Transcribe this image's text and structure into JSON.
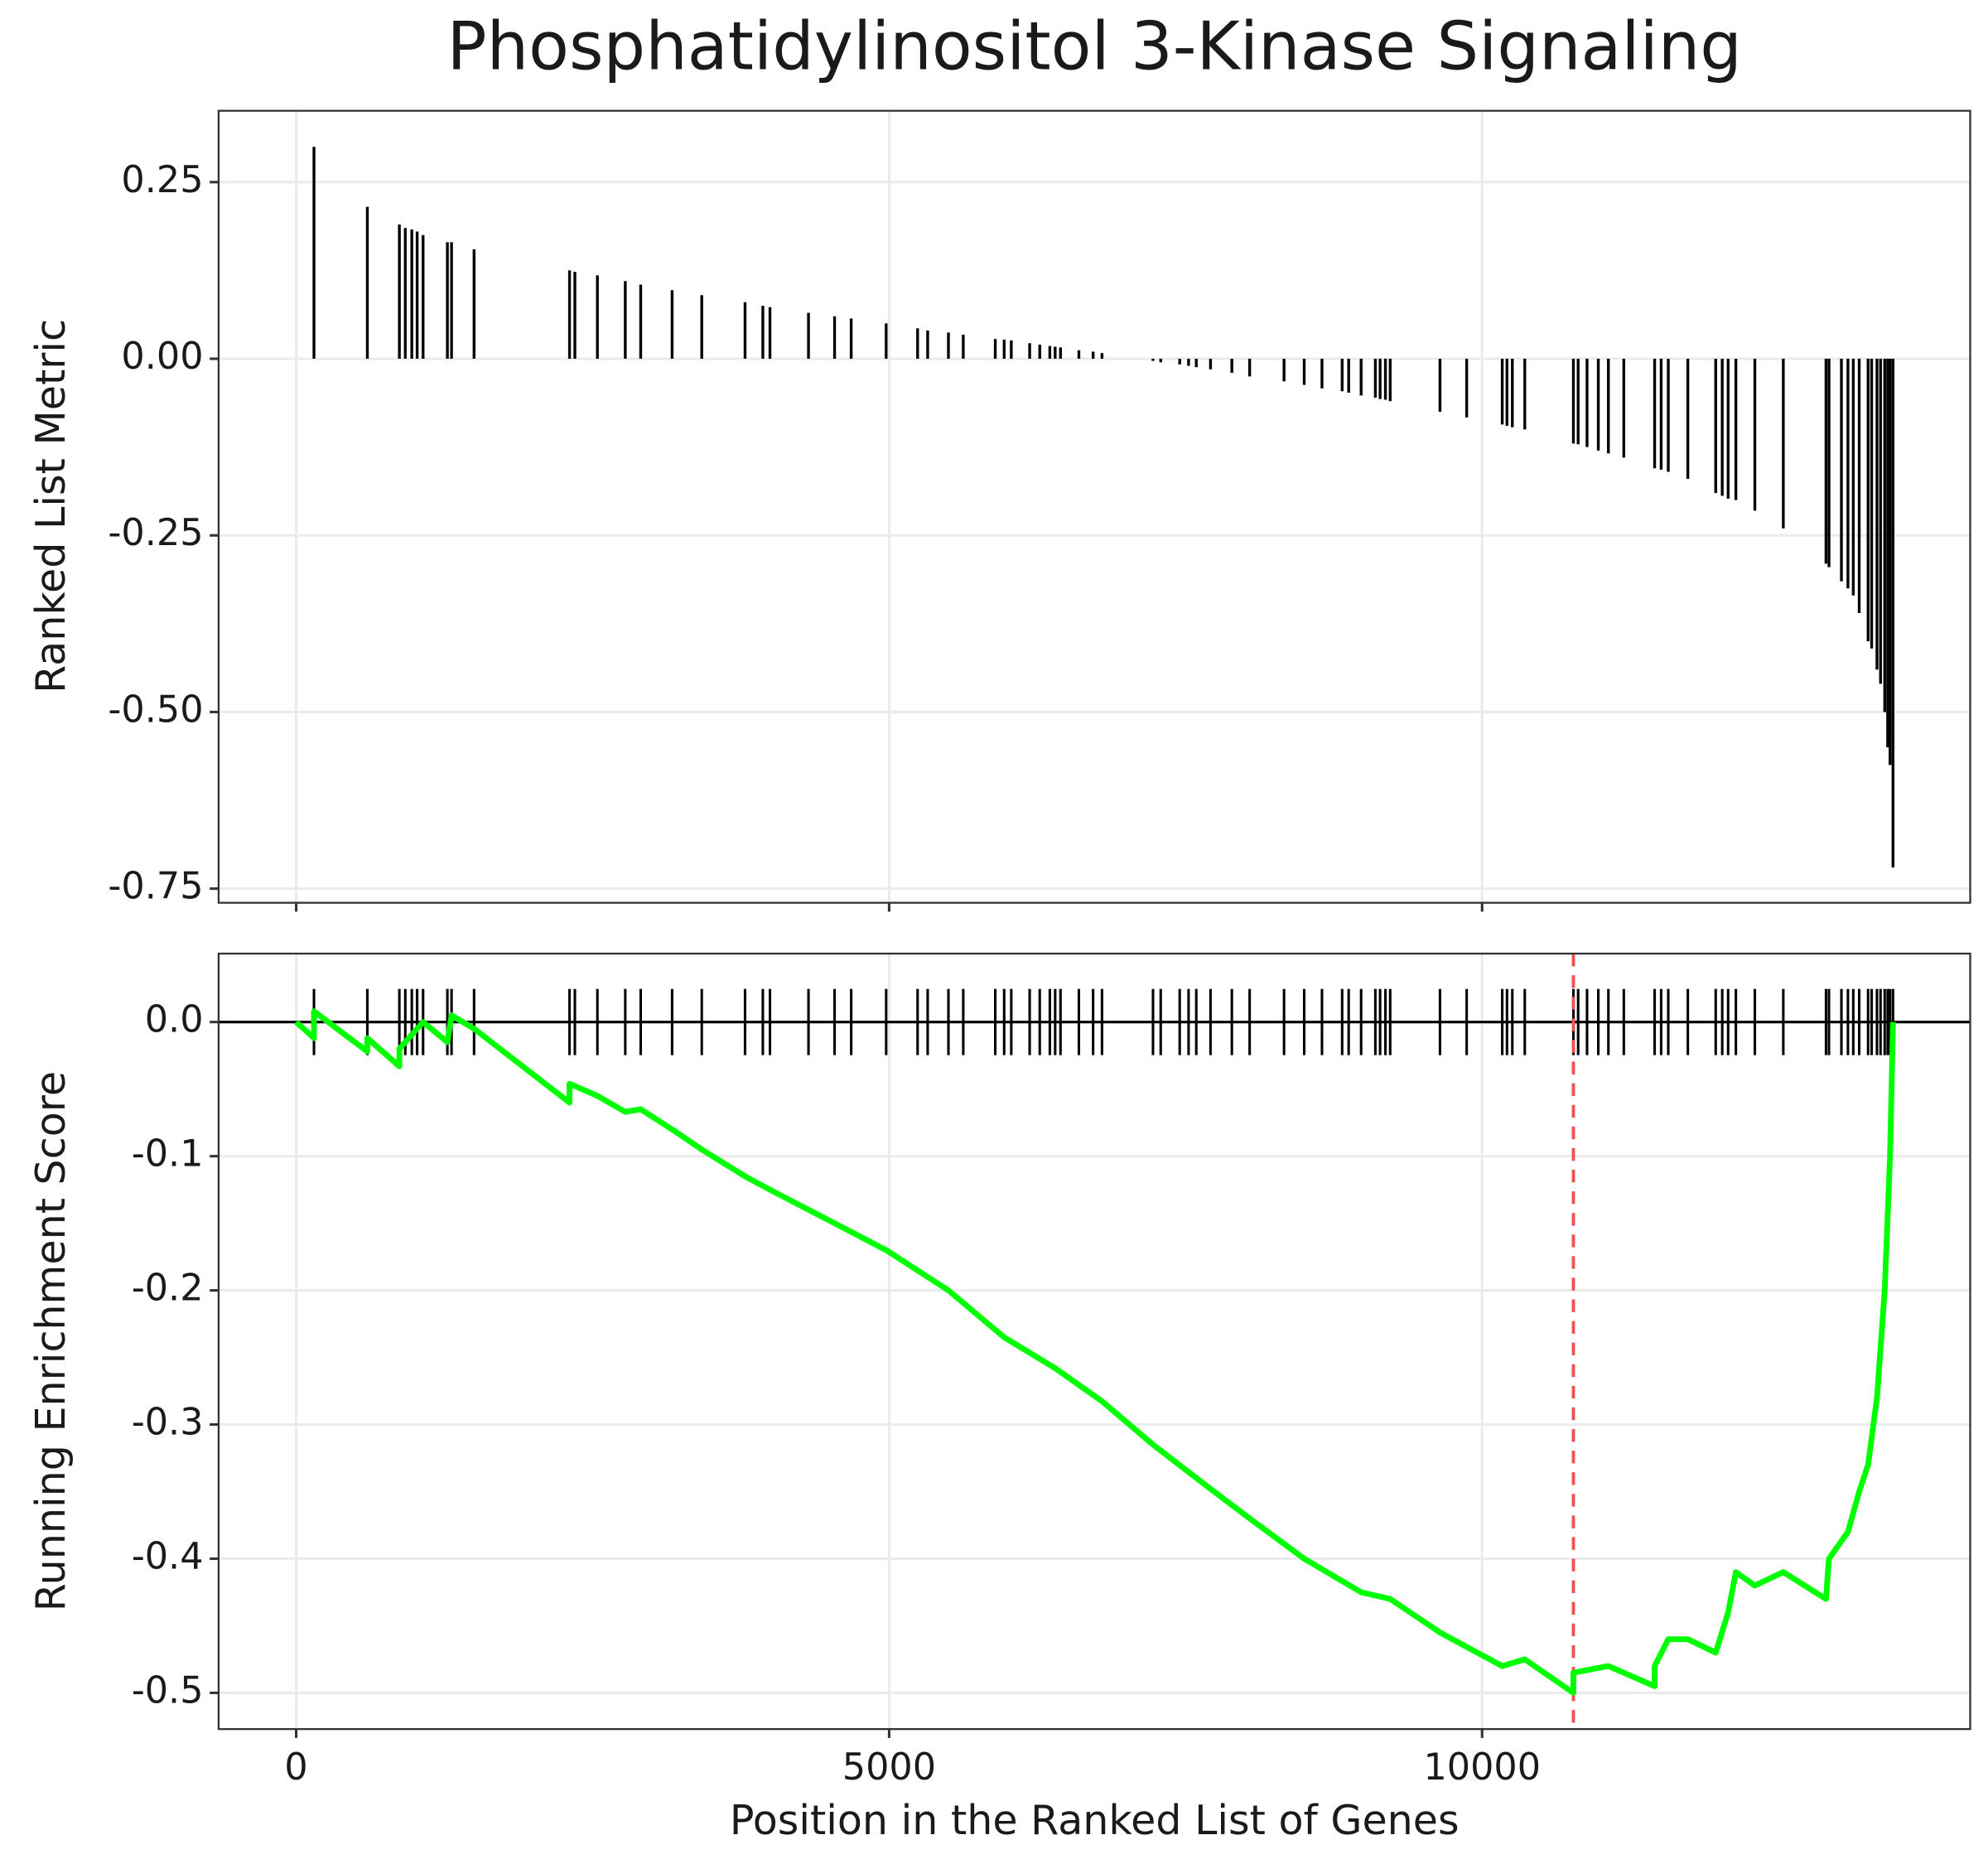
{
  "chart_data": [
    {
      "type": "spike",
      "title": "Phosphatidylinositol 3-Kinase Signaling",
      "y_label": "Ranked List Metric",
      "color": "#000000",
      "grid": true,
      "x": [
        150,
        600,
        870,
        920,
        975,
        1020,
        1070,
        1275,
        1310,
        1500,
        2305,
        2350,
        2540,
        2775,
        2905,
        3170,
        3420,
        3785,
        3935,
        3995,
        4320,
        4540,
        4680,
        4975,
        5240,
        5325,
        5500,
        5625,
        5895,
        5970,
        6030,
        6185,
        6270,
        6355,
        6400,
        6445,
        6600,
        6720,
        6795,
        7225,
        7290,
        7450,
        7525,
        7590,
        7710,
        7890,
        8040,
        8330,
        8500,
        8650,
        8820,
        8875,
        8980,
        9100,
        9140,
        9185,
        9225,
        9645,
        9870,
        10170,
        10210,
        10255,
        10360,
        10770,
        10810,
        10885,
        10980,
        11065,
        11195,
        11455,
        11510,
        11570,
        11735,
        11970,
        12025,
        12075,
        12140,
        12300,
        12540,
        12900,
        12925,
        13030,
        13085,
        13130,
        13180,
        13255,
        13285,
        13330,
        13360,
        13395,
        13420,
        13440,
        13465
      ],
      "values": [
        0.3,
        0.215,
        0.19,
        0.185,
        0.183,
        0.18,
        0.175,
        0.165,
        0.165,
        0.155,
        0.125,
        0.123,
        0.118,
        0.11,
        0.105,
        0.097,
        0.09,
        0.08,
        0.075,
        0.073,
        0.065,
        0.06,
        0.057,
        0.05,
        0.043,
        0.04,
        0.037,
        0.034,
        0.028,
        0.027,
        0.026,
        0.022,
        0.02,
        0.018,
        0.017,
        0.016,
        0.012,
        0.01,
        0.008,
        -0.003,
        -0.005,
        -0.008,
        -0.01,
        -0.012,
        -0.015,
        -0.02,
        -0.025,
        -0.032,
        -0.037,
        -0.042,
        -0.046,
        -0.048,
        -0.052,
        -0.055,
        -0.057,
        -0.058,
        -0.06,
        -0.075,
        -0.083,
        -0.093,
        -0.095,
        -0.097,
        -0.1,
        -0.12,
        -0.121,
        -0.125,
        -0.13,
        -0.134,
        -0.14,
        -0.155,
        -0.157,
        -0.16,
        -0.17,
        -0.19,
        -0.194,
        -0.198,
        -0.2,
        -0.215,
        -0.24,
        -0.29,
        -0.295,
        -0.315,
        -0.325,
        -0.335,
        -0.36,
        -0.4,
        -0.41,
        -0.44,
        -0.46,
        -0.5,
        -0.55,
        -0.575,
        -0.72
      ],
      "xlim": [
        -654,
        14116
      ],
      "xticks": [
        0,
        5000,
        10000
      ],
      "ylim": [
        -0.77,
        0.351
      ],
      "yticks": [
        0.25,
        {
          "value": 0,
          "label": "0.00"
        },
        -0.25,
        {
          "value": -0.5,
          "label": "-0.50"
        },
        -0.75
      ]
    },
    {
      "type": "line",
      "x_label": "Position in the Ranked List of Genes",
      "y_label": "Running Enrichment Score",
      "color": "#00ff00",
      "grid": true,
      "hit_color": "#000000",
      "marker_line_color": "#ef5350",
      "marker_line_x": 10770,
      "x": [
        0,
        150,
        150,
        600,
        600,
        870,
        870,
        1070,
        1275,
        1310,
        1500,
        2305,
        2305,
        2540,
        2775,
        2905,
        3170,
        3420,
        3785,
        3995,
        4540,
        4975,
        5500,
        5970,
        6400,
        6800,
        7225,
        7710,
        8040,
        8500,
        8980,
        9225,
        9645,
        10170,
        10360,
        10770,
        10770,
        11065,
        11455,
        11455,
        11570,
        11735,
        11970,
        12075,
        12140,
        12300,
        12540,
        12900,
        12925,
        13085,
        13180,
        13255,
        13330,
        13395,
        13440,
        13465
      ],
      "values": [
        0,
        -0.012,
        0.008,
        -0.022,
        -0.012,
        -0.033,
        -0.02,
        0,
        -0.015,
        0.005,
        -0.005,
        -0.06,
        -0.046,
        -0.055,
        -0.067,
        -0.065,
        -0.08,
        -0.095,
        -0.115,
        -0.125,
        -0.15,
        -0.17,
        -0.2,
        -0.235,
        -0.258,
        -0.283,
        -0.315,
        -0.348,
        -0.37,
        -0.4,
        -0.425,
        -0.43,
        -0.455,
        -0.48,
        -0.475,
        -0.5,
        -0.485,
        -0.48,
        -0.495,
        -0.48,
        -0.46,
        -0.46,
        -0.47,
        -0.44,
        -0.41,
        -0.42,
        -0.41,
        -0.43,
        -0.4,
        -0.38,
        -0.35,
        -0.33,
        -0.28,
        -0.2,
        -0.1,
        0
      ],
      "xlim": [
        -654,
        14116
      ],
      "xticks": [
        0,
        5000,
        10000
      ],
      "ylim": [
        -0.527,
        0.051
      ],
      "yticks": [
        {
          "value": 0,
          "label": "0.0"
        },
        -0.1,
        -0.2,
        -0.3,
        -0.4,
        -0.5
      ]
    }
  ]
}
